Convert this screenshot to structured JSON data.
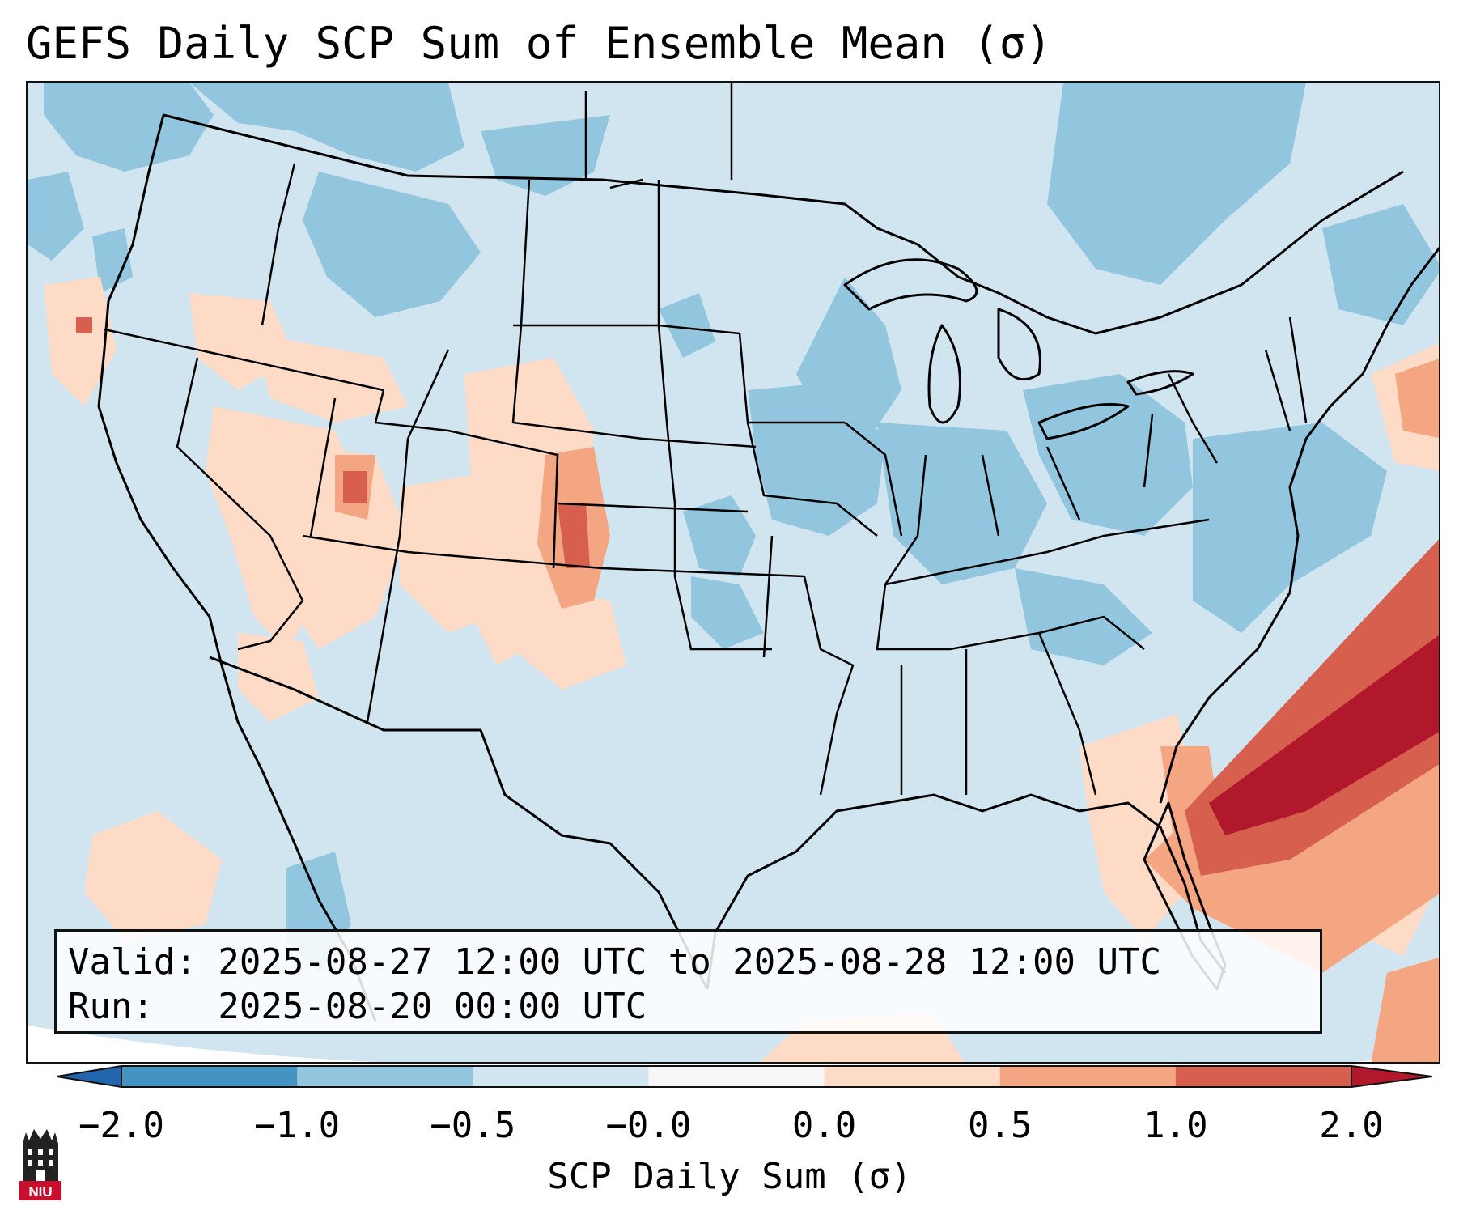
{
  "title": "GEFS Daily SCP Sum of Ensemble Mean (σ)",
  "info": {
    "valid_line": "Valid: 2025-08-27 12:00 UTC to 2025-08-28 12:00 UTC",
    "run_line": "Run:   2025-08-20 00:00 UTC"
  },
  "colorbar": {
    "label": "SCP Daily Sum (σ)",
    "ticks": [
      "−2.0",
      "−1.0",
      "−0.5",
      "−0.0",
      "0.0",
      "0.5",
      "1.0",
      "2.0"
    ],
    "bins": [
      {
        "range": "< -2.0",
        "color": "#2166ac"
      },
      {
        "range": "-2.0 to -1.0",
        "color": "#4393c3"
      },
      {
        "range": "-1.0 to -0.5",
        "color": "#92c5de"
      },
      {
        "range": "-0.5 to -0.0",
        "color": "#d1e5f0"
      },
      {
        "range": "-0.0 to 0.0",
        "color": "#f7f7f7"
      },
      {
        "range": "0.0 to 0.5",
        "color": "#fddbc7"
      },
      {
        "range": "0.5 to 1.0",
        "color": "#f4a582"
      },
      {
        "range": "1.0 to 2.0",
        "color": "#d6604d"
      },
      {
        "range": "> 2.0",
        "color": "#b2182b"
      }
    ]
  },
  "logo": {
    "text": "NIU",
    "color": "#c8102e"
  }
}
